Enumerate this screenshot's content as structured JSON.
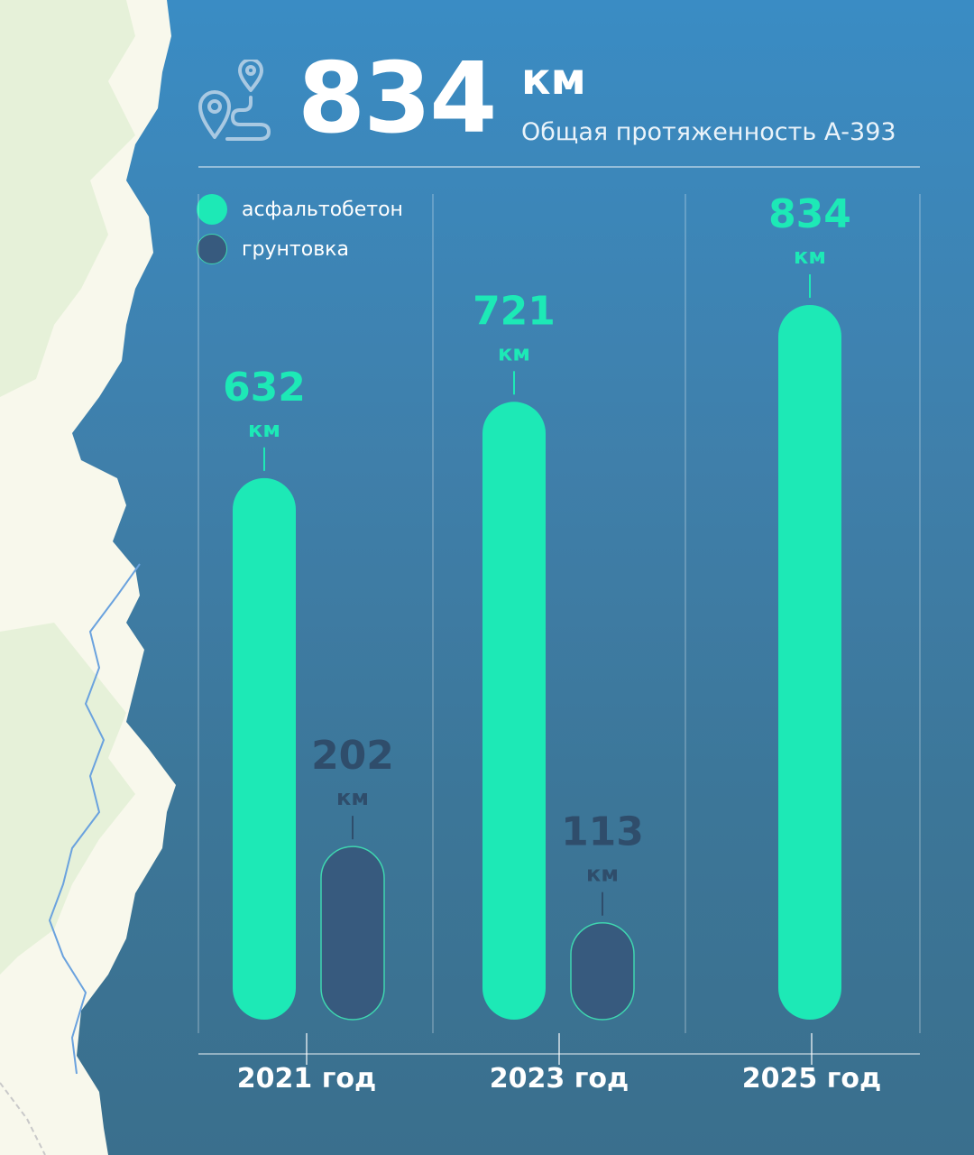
{
  "header": {
    "total_value": "834",
    "total_unit": "км",
    "subtitle": "Общая протяженность А-393",
    "icon": "route-pin-icon"
  },
  "legend": [
    {
      "label": "асфальтобетон",
      "color": "#1de9b6"
    },
    {
      "label": "грунтовка",
      "color": "#375a7e"
    }
  ],
  "chart_data": {
    "type": "bar",
    "categories": [
      "2021 год",
      "2023 год",
      "2025 год"
    ],
    "series": [
      {
        "name": "асфальтобетон",
        "values": [
          632,
          721,
          834
        ],
        "color": "#1de9b6",
        "label_color": "#1de9b6"
      },
      {
        "name": "грунтовка",
        "values": [
          202,
          113,
          null
        ],
        "color": "#375a7e",
        "label_color": "#2f4d6b"
      }
    ],
    "unit": "км",
    "ylim": [
      0,
      834
    ],
    "grid": false,
    "legend_position": "top-left"
  }
}
